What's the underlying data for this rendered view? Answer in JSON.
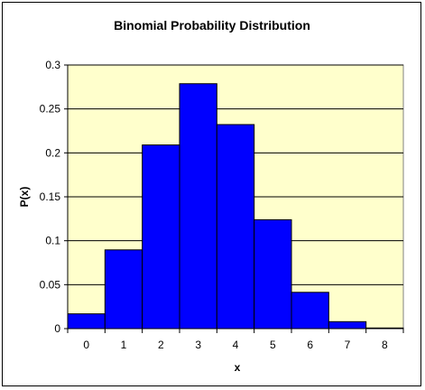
{
  "chart_data": {
    "type": "bar",
    "title": "Binomial Probability Distribution",
    "xlabel": "x",
    "ylabel": "P(x)",
    "categories": [
      "0",
      "1",
      "2",
      "3",
      "4",
      "5",
      "6",
      "7",
      "8"
    ],
    "values": [
      0.0168,
      0.0896,
      0.209,
      0.2787,
      0.2322,
      0.1239,
      0.0413,
      0.0079,
      0.0007
    ],
    "ylim": [
      0,
      0.3
    ],
    "yticks": [
      0,
      0.05,
      0.1,
      0.15,
      0.2,
      0.25,
      0.3
    ],
    "ytick_labels": [
      "0",
      "0.05",
      "0.1",
      "0.15",
      "0.2",
      "0.25",
      "0.3"
    ],
    "grid": true,
    "legend": "none",
    "colors": {
      "bar_fill": "#0000FF",
      "bar_stroke": "#000000",
      "plot_background": "#FFFFCC",
      "gridline": "#000000"
    }
  }
}
